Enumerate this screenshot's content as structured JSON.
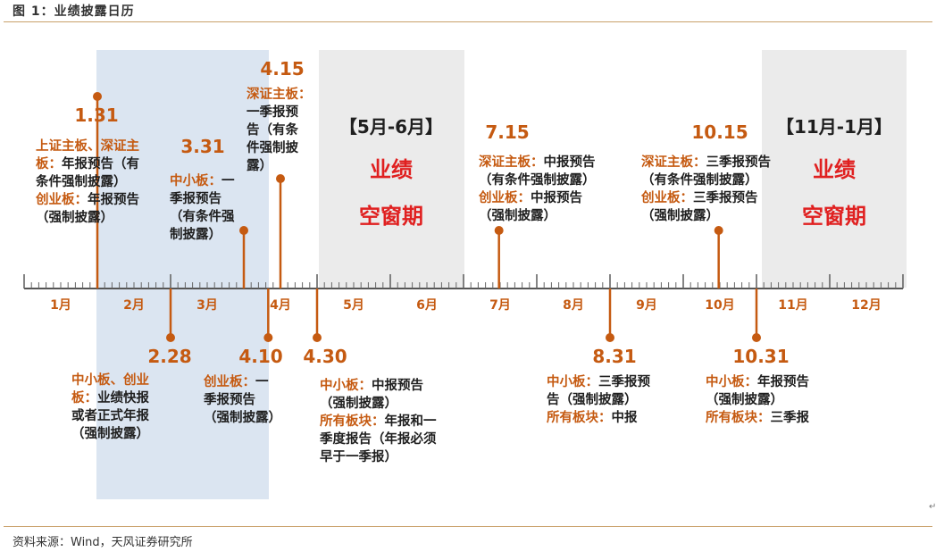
{
  "figure": {
    "title": "图 1：业绩披露日历",
    "source": "资料来源：Wind，天风证券研究所"
  },
  "colors": {
    "accent": "#c55a11",
    "text": "#1f1f1f",
    "red": "#e02020",
    "shade_blue": "#dbe5f1",
    "shade_gray": "#ebebeb",
    "rule": "#c9a06a"
  },
  "months": [
    "1月",
    "2月",
    "3月",
    "4月",
    "5月",
    "6月",
    "7月",
    "8月",
    "9月",
    "10月",
    "11月",
    "12月"
  ],
  "windows": [
    {
      "label": "【5月-6月】",
      "line1": "业绩",
      "line2": "空窗期"
    },
    {
      "label": "【11月-1月】",
      "line1": "业绩",
      "line2": "空窗期"
    }
  ],
  "events": [
    {
      "date": "1.31",
      "side": "above",
      "lines": [
        [
          [
            "上证主板、深证主",
            "a"
          ]
        ],
        [
          [
            "板：",
            "a"
          ],
          [
            "年报预告（有",
            "k"
          ]
        ],
        [
          [
            "条件强制披露）",
            "k"
          ]
        ],
        [
          [
            "创业板：",
            "a"
          ],
          [
            "年报预告",
            "k"
          ]
        ],
        [
          [
            "（强制披露）",
            "k"
          ]
        ]
      ]
    },
    {
      "date": "2.28",
      "side": "below",
      "lines": [
        [
          [
            "中小板、创业",
            "a"
          ]
        ],
        [
          [
            "板：",
            "a"
          ],
          [
            "业绩快报",
            "k"
          ]
        ],
        [
          [
            "或者正式年报",
            "k"
          ]
        ],
        [
          [
            "（强制披露）",
            "k"
          ]
        ]
      ]
    },
    {
      "date": "3.31",
      "side": "above",
      "lines": [
        [
          [
            "中小板：",
            "a"
          ],
          [
            "一",
            "k"
          ]
        ],
        [
          [
            "季报预告",
            "k"
          ]
        ],
        [
          [
            "（有条件强",
            "k"
          ]
        ],
        [
          [
            "制披露）",
            "k"
          ]
        ]
      ]
    },
    {
      "date": "4.10",
      "side": "below",
      "lines": [
        [
          [
            "创业板：",
            "a"
          ],
          [
            "一",
            "k"
          ]
        ],
        [
          [
            "季报预告",
            "k"
          ]
        ],
        [
          [
            "（强制披露）",
            "k"
          ]
        ]
      ]
    },
    {
      "date": "4.15",
      "side": "above",
      "lines": [
        [
          [
            "深证主板：",
            "a"
          ]
        ],
        [
          [
            "一季报预",
            "k"
          ]
        ],
        [
          [
            "告（有条",
            "k"
          ]
        ],
        [
          [
            "件强制披",
            "k"
          ]
        ],
        [
          [
            "露）",
            "k"
          ]
        ]
      ]
    },
    {
      "date": "4.30",
      "side": "below",
      "lines": [
        [
          [
            "中小板：",
            "a"
          ],
          [
            "中报预告",
            "k"
          ]
        ],
        [
          [
            "（强制披露）",
            "k"
          ]
        ],
        [
          [
            "所有板块：",
            "a"
          ],
          [
            "年报和一",
            "k"
          ]
        ],
        [
          [
            "季度报告（年报必须",
            "k"
          ]
        ],
        [
          [
            "早于一季报）",
            "k"
          ]
        ]
      ]
    },
    {
      "date": "7.15",
      "side": "above",
      "lines": [
        [
          [
            "深证主板：",
            "a"
          ],
          [
            "中报预告",
            "k"
          ]
        ],
        [
          [
            "（有条件强制披露）",
            "k"
          ]
        ],
        [
          [
            "创业板：",
            "a"
          ],
          [
            "中报预告",
            "k"
          ]
        ],
        [
          [
            "（强制披露）",
            "k"
          ]
        ]
      ]
    },
    {
      "date": "8.31",
      "side": "below",
      "lines": [
        [
          [
            "中小板：",
            "a"
          ],
          [
            "三季报预",
            "k"
          ]
        ],
        [
          [
            "告（强制披露）",
            "k"
          ]
        ],
        [
          [
            "所有板块：",
            "a"
          ],
          [
            "中报",
            "k"
          ]
        ]
      ]
    },
    {
      "date": "10.15",
      "side": "above",
      "lines": [
        [
          [
            "深证主板：",
            "a"
          ],
          [
            "三季报预告",
            "k"
          ]
        ],
        [
          [
            "（有条件强制披露）",
            "k"
          ]
        ],
        [
          [
            "创业板：",
            "a"
          ],
          [
            "三季报预告",
            "k"
          ]
        ],
        [
          [
            "（强制披露）",
            "k"
          ]
        ]
      ]
    },
    {
      "date": "10.31",
      "side": "below",
      "lines": [
        [
          [
            "中小板：",
            "a"
          ],
          [
            "年报预告",
            "k"
          ]
        ],
        [
          [
            "（强制披露）",
            "k"
          ]
        ],
        [
          [
            "所有板块：",
            "a"
          ],
          [
            "三季报",
            "k"
          ]
        ]
      ]
    }
  ]
}
